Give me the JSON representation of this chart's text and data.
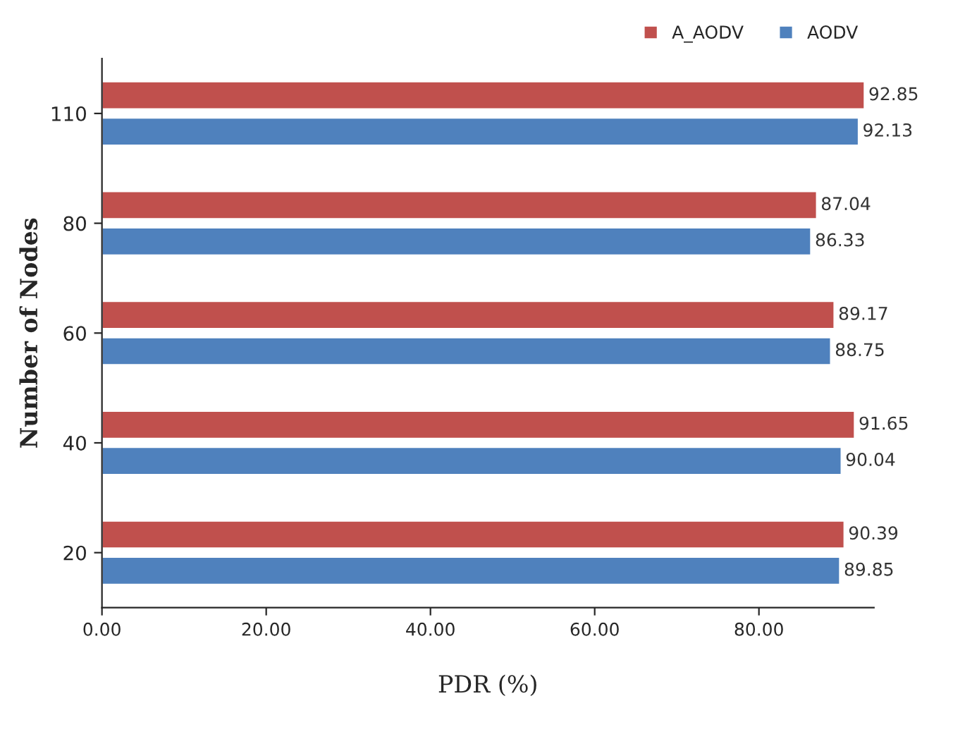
{
  "chart_data": {
    "type": "bar",
    "orientation": "horizontal",
    "xlabel": "PDR (%)",
    "ylabel": "Number of Nodes",
    "categories": [
      "110",
      "80",
      "60",
      "40",
      "20"
    ],
    "series": [
      {
        "name": "A_AODV",
        "color": "#c0504d",
        "values": [
          92.85,
          87.04,
          89.17,
          91.65,
          90.39
        ]
      },
      {
        "name": "AODV",
        "color": "#4f81bd",
        "values": [
          92.13,
          86.33,
          88.75,
          90.04,
          89.85
        ]
      }
    ],
    "xlim": [
      0,
      94
    ],
    "xticks": [
      {
        "value": 0,
        "label": "0.00"
      },
      {
        "value": 20,
        "label": "20.00"
      },
      {
        "value": 40,
        "label": "40.00"
      },
      {
        "value": 60,
        "label": "60.00"
      },
      {
        "value": 80,
        "label": "80.00"
      }
    ],
    "data_labels": true,
    "legend": "top right",
    "grid": false
  }
}
